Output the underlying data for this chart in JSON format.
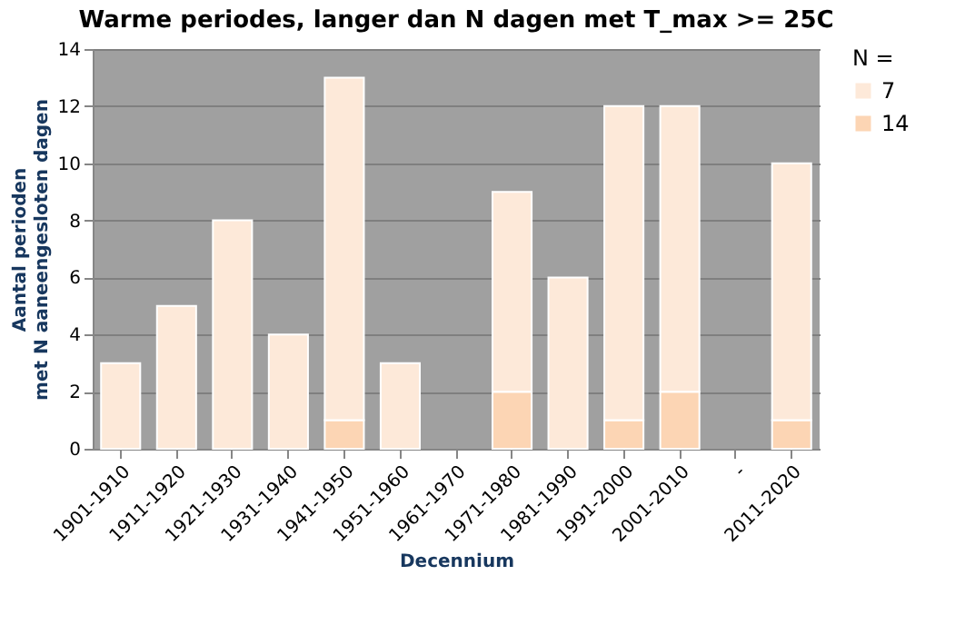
{
  "chart_data": {
    "type": "bar",
    "title": "Warme periodes, langer dan N dagen met T_max >= 25C",
    "xlabel": "Decennium",
    "ylabel": "Aantal perioden\nmet N aaneengesloten dagen",
    "legend_title": "N =",
    "categories": [
      "1901-1910",
      "1911-1920",
      "1921-1930",
      "1931-1940",
      "1941-1950",
      "1951-1960",
      "1961-1970",
      "1971-1980",
      "1981-1990",
      "1991-2000",
      "2001-2010",
      "-",
      "2011-2020"
    ],
    "stacked": true,
    "series": [
      {
        "name": "14",
        "color": "#fcd5b4",
        "values": [
          0,
          0,
          0,
          0,
          1,
          0,
          0,
          2,
          0,
          1,
          2,
          0,
          1
        ]
      },
      {
        "name": "7",
        "color": "#fde9d9",
        "values": [
          3,
          5,
          8,
          4,
          12,
          3,
          0,
          7,
          6,
          11,
          10,
          0,
          9
        ]
      }
    ],
    "ylim": [
      0,
      14
    ],
    "yticks": [
      0,
      2,
      4,
      6,
      8,
      10,
      12,
      14
    ],
    "grid": "y",
    "legend": "right"
  }
}
